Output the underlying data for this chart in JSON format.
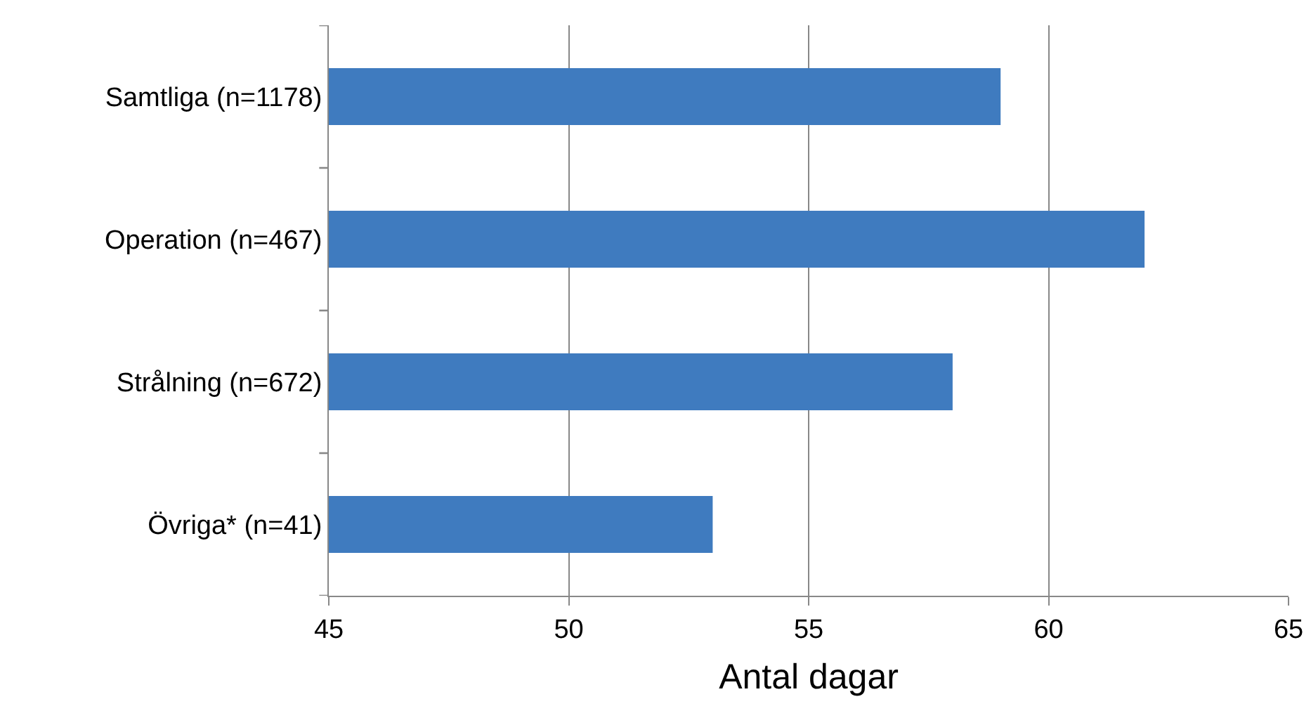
{
  "chart_data": {
    "type": "bar",
    "orientation": "horizontal",
    "xlabel": "Antal dagar",
    "categories": [
      "Samtliga (n=1178)",
      "Operation (n=467)",
      "Strålning (n=672)",
      "Övriga* (n=41)"
    ],
    "values": [
      59,
      62,
      58,
      53
    ],
    "color": "#3f7bbf",
    "xlim": [
      45,
      65
    ],
    "xticks": [
      45,
      50,
      55,
      60,
      65
    ],
    "grid": "x"
  }
}
